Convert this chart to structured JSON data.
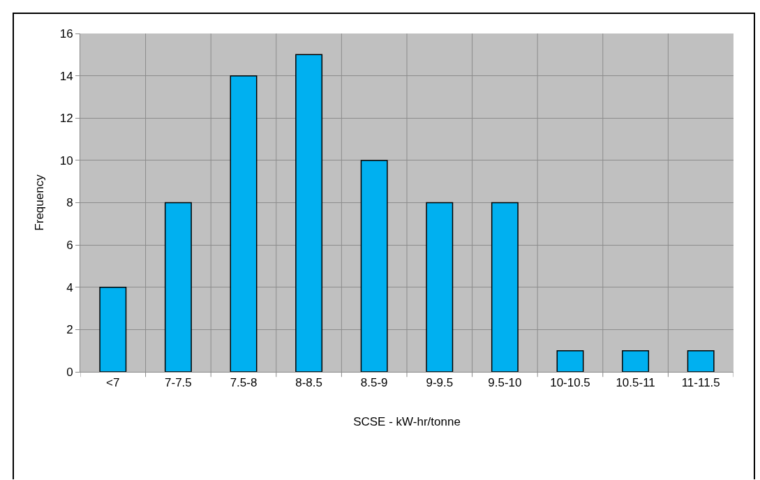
{
  "chart_data": {
    "type": "bar",
    "xlabel": "SCSE - kW-hr/tonne",
    "ylabel": "Frequency",
    "categories": [
      "<7",
      "7-7.5",
      "7.5-8",
      "8-8.5",
      "8.5-9",
      "9-9.5",
      "9.5-10",
      "10-10.5",
      "10.5-11",
      "11-11.5"
    ],
    "values": [
      4,
      8,
      14,
      15,
      10,
      8,
      8,
      1,
      1,
      1
    ],
    "color": "#00b0f0",
    "ylim": [
      0,
      16
    ],
    "yticks": [
      0,
      2,
      4,
      6,
      8,
      10,
      12,
      14,
      16
    ],
    "grid": true
  }
}
